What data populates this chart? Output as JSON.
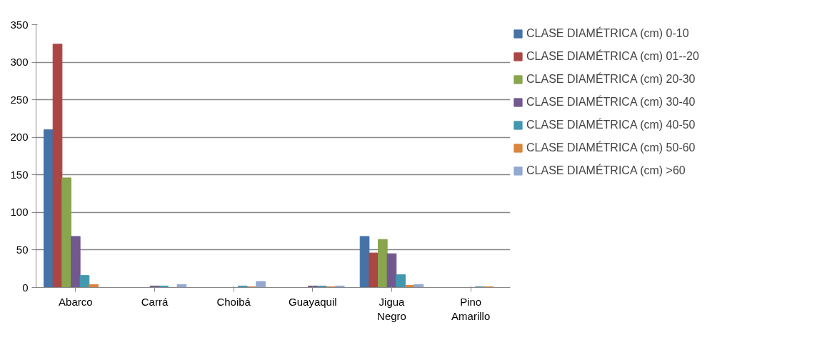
{
  "chart_data": {
    "type": "bar",
    "categories": [
      "Abarco",
      "Carrá",
      "Choibá",
      "Guayaquil",
      "Jigua Negro",
      "Pino Amarillo"
    ],
    "series": [
      {
        "name": "CLASE DIAMÉTRICA (cm) 0-10",
        "color": "#4572a7",
        "values": [
          210,
          0,
          0,
          0,
          68,
          0
        ]
      },
      {
        "name": "CLASE DIAMÉTRICA (cm) 01--20",
        "color": "#aa4643",
        "values": [
          324,
          0,
          0,
          0,
          46,
          0
        ]
      },
      {
        "name": "CLASE DIAMÉTRICA (cm) 20-30",
        "color": "#89a54e",
        "values": [
          146,
          0,
          0,
          0,
          64,
          0
        ]
      },
      {
        "name": "CLASE DIAMÉTRICA (cm) 30-40",
        "color": "#71588f",
        "values": [
          68,
          2,
          0,
          2,
          45,
          0
        ]
      },
      {
        "name": "CLASE DIAMÉTRICA (cm) 40-50",
        "color": "#4198af",
        "values": [
          16,
          2,
          2,
          2,
          17,
          1
        ]
      },
      {
        "name": "CLASE DIAMÉTRICA (cm) 50-60",
        "color": "#db843d",
        "values": [
          4,
          0,
          1,
          1,
          3,
          1
        ]
      },
      {
        "name": "CLASE DIAMÉTRICA (cm) >60",
        "color": "#93a9cf",
        "values": [
          0,
          4,
          8,
          2,
          4,
          0
        ]
      }
    ],
    "ylim": [
      0,
      350
    ],
    "yticks": [
      0,
      50,
      100,
      150,
      200,
      250,
      300,
      350
    ],
    "grid": "y",
    "legend": "right"
  }
}
